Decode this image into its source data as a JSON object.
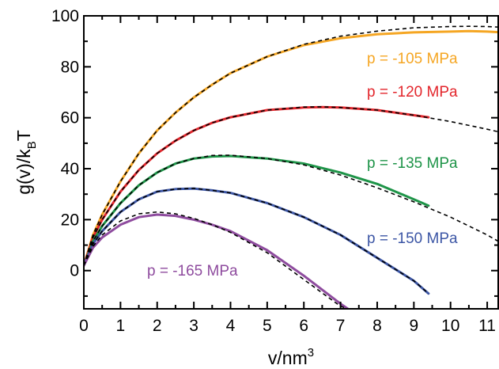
{
  "chart_data": {
    "type": "line",
    "xlabel": {
      "base": "v/nm",
      "sup": "3"
    },
    "ylabel": {
      "base": "g(v)/k",
      "sub": "B",
      "tail": "T"
    },
    "xlim": [
      0,
      11.3
    ],
    "ylim": [
      -15,
      100
    ],
    "x_ticks": [
      0,
      1,
      2,
      3,
      4,
      5,
      6,
      7,
      8,
      9,
      10,
      11
    ],
    "y_ticks": [
      0,
      20,
      40,
      60,
      80,
      100
    ],
    "grid": false,
    "fit_style": "black dashed",
    "series": [
      {
        "name": "p = -105 MPa",
        "color": "#f5a623",
        "points": [
          [
            0,
            2
          ],
          [
            0.25,
            14
          ],
          [
            0.5,
            22
          ],
          [
            1,
            35
          ],
          [
            1.5,
            46
          ],
          [
            2,
            55
          ],
          [
            2.5,
            62
          ],
          [
            3,
            68
          ],
          [
            3.5,
            73
          ],
          [
            4,
            77.5
          ],
          [
            5,
            84
          ],
          [
            6,
            88.5
          ],
          [
            7,
            91.2
          ],
          [
            8,
            92.8
          ],
          [
            9,
            93.5
          ],
          [
            10,
            93.8
          ],
          [
            10.5,
            94
          ],
          [
            11,
            93.8
          ],
          [
            11.3,
            93.6
          ]
        ],
        "fit": [
          [
            0,
            2
          ],
          [
            0.25,
            14
          ],
          [
            0.5,
            22
          ],
          [
            1,
            35
          ],
          [
            1.5,
            46
          ],
          [
            2,
            55
          ],
          [
            2.5,
            62
          ],
          [
            3,
            68
          ],
          [
            3.5,
            73
          ],
          [
            4,
            77.5
          ],
          [
            5,
            84
          ],
          [
            6,
            88.8
          ],
          [
            7,
            92
          ],
          [
            8,
            94
          ],
          [
            9,
            95.3
          ],
          [
            10,
            95.8
          ],
          [
            10.5,
            95.9
          ],
          [
            11,
            95.8
          ],
          [
            11.3,
            95.6
          ]
        ]
      },
      {
        "name": "p = -120 MPa",
        "color": "#e3262c",
        "points": [
          [
            0,
            2
          ],
          [
            0.25,
            13
          ],
          [
            0.5,
            20
          ],
          [
            1,
            31
          ],
          [
            1.5,
            39.5
          ],
          [
            2,
            46
          ],
          [
            2.5,
            51
          ],
          [
            3,
            55
          ],
          [
            3.5,
            58
          ],
          [
            4,
            60.2
          ],
          [
            5,
            63
          ],
          [
            6,
            64
          ],
          [
            6.5,
            64.2
          ],
          [
            7,
            64
          ],
          [
            8,
            63
          ],
          [
            9,
            61
          ],
          [
            9.4,
            60.2
          ]
        ],
        "fit": [
          [
            0,
            2
          ],
          [
            0.25,
            13
          ],
          [
            0.5,
            20
          ],
          [
            1,
            31
          ],
          [
            1.5,
            39.5
          ],
          [
            2,
            46
          ],
          [
            2.5,
            51
          ],
          [
            3,
            55
          ],
          [
            3.5,
            58
          ],
          [
            4,
            60.2
          ],
          [
            5,
            63
          ],
          [
            6,
            64.2
          ],
          [
            6.5,
            64.3
          ],
          [
            7,
            64
          ],
          [
            8,
            63
          ],
          [
            9,
            61
          ],
          [
            10,
            58.5
          ],
          [
            11,
            55.5
          ],
          [
            11.3,
            54.5
          ]
        ]
      },
      {
        "name": "p = -135 MPa",
        "color": "#1e9448",
        "points": [
          [
            0,
            2
          ],
          [
            0.25,
            11.5
          ],
          [
            0.5,
            17.5
          ],
          [
            1,
            26.5
          ],
          [
            1.5,
            33.5
          ],
          [
            2,
            38.5
          ],
          [
            2.5,
            42
          ],
          [
            3,
            44
          ],
          [
            3.5,
            44.8
          ],
          [
            4,
            45
          ],
          [
            5,
            44
          ],
          [
            6,
            42
          ],
          [
            7,
            38.5
          ],
          [
            8,
            34
          ],
          [
            9,
            28
          ],
          [
            9.4,
            25.5
          ]
        ],
        "fit": [
          [
            0,
            2
          ],
          [
            0.25,
            11.5
          ],
          [
            0.5,
            17.5
          ],
          [
            1,
            26.5
          ],
          [
            1.5,
            33.5
          ],
          [
            2,
            38.5
          ],
          [
            2.5,
            42
          ],
          [
            3,
            44
          ],
          [
            3.5,
            45.2
          ],
          [
            4,
            45.3
          ],
          [
            5,
            44
          ],
          [
            6,
            41.5
          ],
          [
            7,
            37.5
          ],
          [
            8,
            32.5
          ],
          [
            9,
            27
          ],
          [
            10,
            21
          ],
          [
            11,
            14
          ],
          [
            11.3,
            11.5
          ]
        ]
      },
      {
        "name": "p = -150 MPa",
        "color": "#3c56a5",
        "points": [
          [
            0,
            2
          ],
          [
            0.25,
            10.5
          ],
          [
            0.5,
            15.5
          ],
          [
            1,
            23
          ],
          [
            1.5,
            28
          ],
          [
            2,
            31
          ],
          [
            2.5,
            32
          ],
          [
            3,
            32.2
          ],
          [
            3.5,
            31.5
          ],
          [
            4,
            30.5
          ],
          [
            5,
            26.5
          ],
          [
            6,
            21
          ],
          [
            7,
            14
          ],
          [
            8,
            5
          ],
          [
            9,
            -4
          ],
          [
            9.4,
            -9
          ]
        ],
        "fit": [
          [
            0,
            2
          ],
          [
            0.25,
            10.5
          ],
          [
            0.5,
            15.5
          ],
          [
            1,
            23
          ],
          [
            1.5,
            28
          ],
          [
            2,
            31
          ],
          [
            2.5,
            32
          ],
          [
            3,
            32.3
          ],
          [
            3.5,
            31.5
          ],
          [
            4,
            30.5
          ],
          [
            5,
            26.5
          ],
          [
            6,
            21
          ],
          [
            7,
            14
          ],
          [
            8,
            5
          ],
          [
            9,
            -4
          ],
          [
            9.4,
            -9
          ]
        ]
      },
      {
        "name": "p = -165 MPa",
        "color": "#8e4b9e",
        "points": [
          [
            0,
            2
          ],
          [
            0.25,
            9
          ],
          [
            0.5,
            13
          ],
          [
            1,
            18
          ],
          [
            1.5,
            21
          ],
          [
            2,
            22
          ],
          [
            2.5,
            21.5
          ],
          [
            3,
            20
          ],
          [
            3.5,
            18
          ],
          [
            4,
            15.5
          ],
          [
            5,
            8
          ],
          [
            6,
            -2
          ],
          [
            7,
            -13
          ],
          [
            7.2,
            -15
          ]
        ],
        "fit": [
          [
            0,
            2
          ],
          [
            0.25,
            9.5
          ],
          [
            0.5,
            14
          ],
          [
            1,
            19.5
          ],
          [
            1.5,
            22.3
          ],
          [
            2,
            23
          ],
          [
            2.5,
            22.3
          ],
          [
            3,
            20.5
          ],
          [
            3.5,
            18
          ],
          [
            4,
            15
          ],
          [
            5,
            7
          ],
          [
            6,
            -3.5
          ],
          [
            7,
            -14
          ],
          [
            7.2,
            -15
          ]
        ]
      }
    ]
  }
}
